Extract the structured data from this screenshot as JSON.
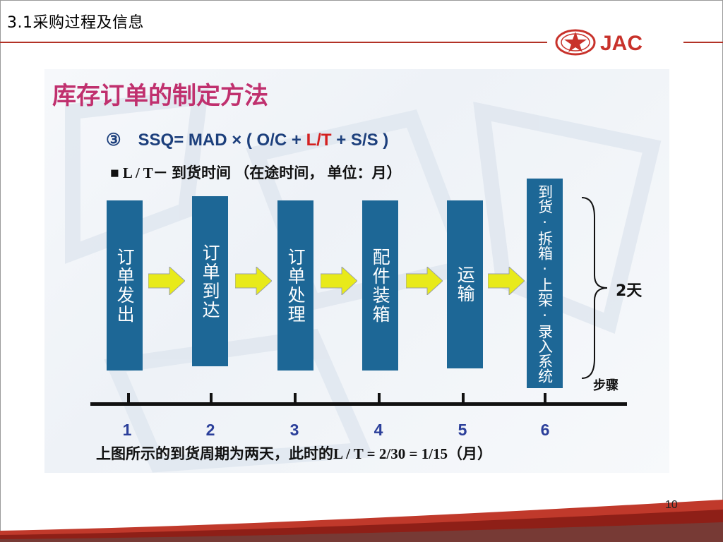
{
  "header": {
    "section_title": "3.1采购过程及信息",
    "logo_text": "JAC"
  },
  "content": {
    "title": "库存订单的制定方法",
    "formula": {
      "prefix": "③　SSQ=  MAD × ( O/C + ",
      "highlight": "L/T",
      "suffix": " + S/S )"
    },
    "lt_definition": "■ L / T－ 到货时间 （在途时间， 单位：月）",
    "steps": [
      {
        "label": "订单发出",
        "number": "1"
      },
      {
        "label": "订单到达",
        "number": "2"
      },
      {
        "label": "订单处理",
        "number": "3"
      },
      {
        "label": "配件装箱",
        "number": "4"
      },
      {
        "label": "运输",
        "number": "5"
      },
      {
        "label": "到货·拆箱·上架·录入系统",
        "number": "6"
      }
    ],
    "brace_label": "2天",
    "axis_label": "步骤",
    "caption": "上图所示的到货周期为两天，此时的L / T =  2/30 = 1/15（月）"
  },
  "footer": {
    "page_number": "10"
  },
  "colors": {
    "title": "#c0306e",
    "formula": "#1c3f7c",
    "highlight": "#d42020",
    "step_box": "#1d6796",
    "arrow": "#e8ea1a",
    "tick_label": "#2b3f9a",
    "header_line": "#b23226"
  }
}
